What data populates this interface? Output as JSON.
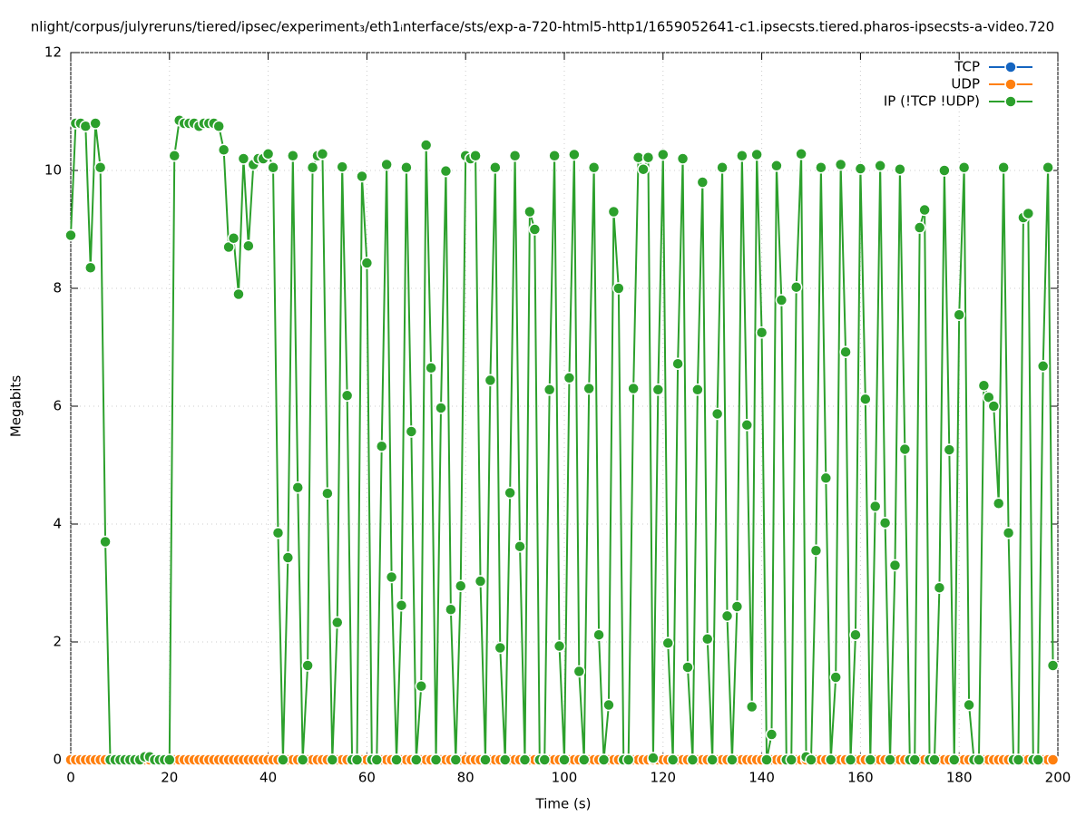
{
  "chart_data": {
    "type": "line",
    "title": "nlight/corpus/julyreruns/tiered/ipsec/experiment₃/eth1ᵢnterface/sts/exp-a-720-html5-http1/1659052641-c1.ipsecsts.tiered.pharos-ipsecsts-a-video.720",
    "x_label": "Time (s)",
    "y_label": "Megabits",
    "xlim": [
      0,
      200
    ],
    "xticks": [
      0,
      20,
      40,
      60,
      80,
      100,
      120,
      140,
      160,
      180,
      200
    ],
    "ylim": [
      0,
      12
    ],
    "yticks": [
      0,
      2,
      4,
      6,
      8,
      10,
      12
    ],
    "grid": true,
    "legend": "top-right",
    "x": [
      0,
      1,
      2,
      3,
      4,
      5,
      6,
      7,
      8,
      9,
      10,
      11,
      12,
      13,
      14,
      15,
      16,
      17,
      18,
      19,
      20,
      21,
      22,
      23,
      24,
      25,
      26,
      27,
      28,
      29,
      30,
      31,
      32,
      33,
      34,
      35,
      36,
      37,
      38,
      39,
      40,
      41,
      42,
      43,
      44,
      45,
      46,
      47,
      48,
      49,
      50,
      51,
      52,
      53,
      54,
      55,
      56,
      57,
      58,
      59,
      60,
      61,
      62,
      63,
      64,
      65,
      66,
      67,
      68,
      69,
      70,
      71,
      72,
      73,
      74,
      75,
      76,
      77,
      78,
      79,
      80,
      81,
      82,
      83,
      84,
      85,
      86,
      87,
      88,
      89,
      90,
      91,
      92,
      93,
      94,
      95,
      96,
      97,
      98,
      99,
      100,
      101,
      102,
      103,
      104,
      105,
      106,
      107,
      108,
      109,
      110,
      111,
      112,
      113,
      114,
      115,
      116,
      117,
      118,
      119,
      120,
      121,
      122,
      123,
      124,
      125,
      126,
      127,
      128,
      129,
      130,
      131,
      132,
      133,
      134,
      135,
      136,
      137,
      138,
      139,
      140,
      141,
      142,
      143,
      144,
      145,
      146,
      147,
      148,
      149,
      150,
      151,
      152,
      153,
      154,
      155,
      156,
      157,
      158,
      159,
      160,
      161,
      162,
      163,
      164,
      165,
      166,
      167,
      168,
      169,
      170,
      171,
      172,
      173,
      174,
      175,
      176,
      177,
      178,
      179,
      180,
      181,
      182,
      183,
      184,
      185,
      186,
      187,
      188,
      189,
      190,
      191,
      192,
      193,
      194,
      195,
      196,
      197,
      198,
      199
    ],
    "series": [
      {
        "name": "TCP",
        "color": "#1565c0",
        "values": [
          0,
          0,
          0,
          0,
          0,
          0,
          0,
          0,
          0,
          0,
          0,
          0,
          0,
          0,
          0,
          0,
          0,
          0,
          0,
          0,
          0,
          0,
          0,
          0,
          0,
          0,
          0,
          0,
          0,
          0,
          0,
          0,
          0,
          0,
          0,
          0,
          0,
          0,
          0,
          0,
          0,
          0,
          0,
          0,
          0,
          0,
          0,
          0,
          0,
          0,
          0,
          0,
          0,
          0,
          0,
          0,
          0,
          0,
          0,
          0,
          0,
          0,
          0,
          0,
          0,
          0,
          0,
          0,
          0,
          0,
          0,
          0,
          0,
          0,
          0,
          0,
          0,
          0,
          0,
          0,
          0,
          0,
          0,
          0,
          0,
          0,
          0,
          0,
          0,
          0,
          0,
          0,
          0,
          0,
          0,
          0,
          0,
          0,
          0,
          0,
          0,
          0,
          0,
          0,
          0,
          0,
          0,
          0,
          0,
          0,
          0,
          0,
          0,
          0,
          0,
          0,
          0,
          0,
          0,
          0,
          0,
          0,
          0,
          0,
          0,
          0,
          0,
          0,
          0,
          0,
          0,
          0,
          0,
          0,
          0,
          0,
          0,
          0,
          0,
          0,
          0,
          0,
          0,
          0,
          0,
          0,
          0,
          0,
          0,
          0,
          0,
          0,
          0,
          0,
          0,
          0,
          0,
          0,
          0,
          0,
          0,
          0,
          0,
          0,
          0,
          0,
          0,
          0,
          0,
          0,
          0,
          0,
          0,
          0,
          0,
          0,
          0,
          0,
          0,
          0,
          0,
          0,
          0,
          0,
          0,
          0,
          0,
          0,
          0,
          0,
          0,
          0,
          0,
          0,
          0,
          0,
          0,
          0,
          0,
          0
        ]
      },
      {
        "name": "UDP",
        "color": "#ff7f0e",
        "values": [
          0,
          0,
          0,
          0,
          0,
          0,
          0,
          0,
          0,
          0,
          0,
          0,
          0,
          0,
          0,
          0,
          0,
          0,
          0,
          0,
          0,
          0,
          0,
          0,
          0,
          0,
          0,
          0,
          0,
          0,
          0,
          0,
          0,
          0,
          0,
          0,
          0,
          0,
          0,
          0,
          0,
          0,
          0,
          0,
          0,
          0,
          0,
          0,
          0,
          0,
          0,
          0,
          0,
          0,
          0,
          0,
          0,
          0,
          0,
          0,
          0,
          0,
          0,
          0,
          0,
          0,
          0,
          0,
          0,
          0,
          0,
          0,
          0,
          0,
          0,
          0,
          0,
          0,
          0,
          0,
          0,
          0,
          0,
          0,
          0,
          0,
          0,
          0,
          0,
          0,
          0,
          0,
          0,
          0,
          0,
          0,
          0,
          0,
          0,
          0,
          0,
          0,
          0,
          0,
          0,
          0,
          0,
          0,
          0,
          0,
          0,
          0,
          0,
          0,
          0,
          0,
          0,
          0,
          0,
          0,
          0,
          0,
          0,
          0,
          0,
          0,
          0,
          0,
          0,
          0,
          0,
          0,
          0,
          0,
          0,
          0,
          0,
          0,
          0,
          0,
          0,
          0,
          0,
          0,
          0,
          0,
          0,
          0,
          0,
          0,
          0,
          0,
          0,
          0,
          0,
          0,
          0,
          0,
          0,
          0,
          0,
          0,
          0,
          0,
          0,
          0,
          0,
          0,
          0,
          0,
          0,
          0,
          0,
          0,
          0,
          0,
          0,
          0,
          0,
          0,
          0,
          0,
          0,
          0,
          0,
          0,
          0,
          0,
          0,
          0,
          0,
          0,
          0,
          0,
          0,
          0,
          0,
          0,
          0,
          0
        ]
      },
      {
        "name": "IP (!TCP  !UDP)",
        "color": "#2ca02c",
        "values": [
          8.9,
          10.8,
          10.8,
          10.75,
          8.35,
          10.8,
          10.05,
          3.7,
          0,
          0,
          0,
          0,
          0,
          0,
          0,
          0.05,
          0.05,
          0,
          0,
          0,
          0,
          10.25,
          10.85,
          10.8,
          10.8,
          10.8,
          10.75,
          10.8,
          10.8,
          10.8,
          10.75,
          10.35,
          8.7,
          8.85,
          7.9,
          10.2,
          8.72,
          10.1,
          10.2,
          10.2,
          10.28,
          10.05,
          3.85,
          0,
          3.43,
          10.25,
          4.62,
          0,
          1.6,
          10.05,
          10.25,
          10.28,
          4.52,
          0,
          2.33,
          10.06,
          6.18,
          0,
          0,
          9.9,
          8.43,
          0,
          0,
          5.32,
          10.1,
          3.1,
          0,
          2.62,
          10.05,
          5.57,
          0,
          1.25,
          10.43,
          6.65,
          0,
          5.97,
          9.99,
          2.55,
          0,
          2.95,
          10.25,
          10.2,
          10.25,
          3.03,
          0,
          6.44,
          10.05,
          1.9,
          0,
          4.53,
          10.25,
          3.62,
          0,
          9.3,
          9.0,
          0,
          0,
          6.28,
          10.25,
          1.93,
          0,
          6.48,
          10.27,
          1.5,
          0,
          6.3,
          10.05,
          2.12,
          0,
          0.93,
          9.3,
          8.0,
          0,
          0,
          6.3,
          10.22,
          10.02,
          10.22,
          0.03,
          6.28,
          10.27,
          1.98,
          0,
          6.72,
          10.2,
          1.57,
          0,
          6.28,
          9.8,
          2.05,
          0,
          5.87,
          10.05,
          2.44,
          0,
          2.6,
          10.25,
          5.68,
          0.9,
          10.27,
          7.25,
          0,
          0.43,
          10.08,
          7.8,
          0,
          0,
          8.02,
          10.28,
          0.05,
          0,
          3.55,
          10.05,
          4.78,
          0,
          1.4,
          10.1,
          6.92,
          0,
          2.12,
          10.03,
          6.12,
          0,
          4.3,
          10.08,
          4.02,
          0,
          3.3,
          10.02,
          5.27,
          0,
          0,
          9.03,
          9.33,
          0,
          0,
          2.92,
          10.0,
          5.26,
          0,
          7.55,
          10.05,
          0.93,
          0,
          0,
          6.35,
          6.15,
          6.0,
          4.35,
          10.05,
          3.85,
          0,
          0,
          9.2,
          9.27,
          0,
          0,
          6.68,
          10.05,
          1.6
        ]
      }
    ]
  }
}
